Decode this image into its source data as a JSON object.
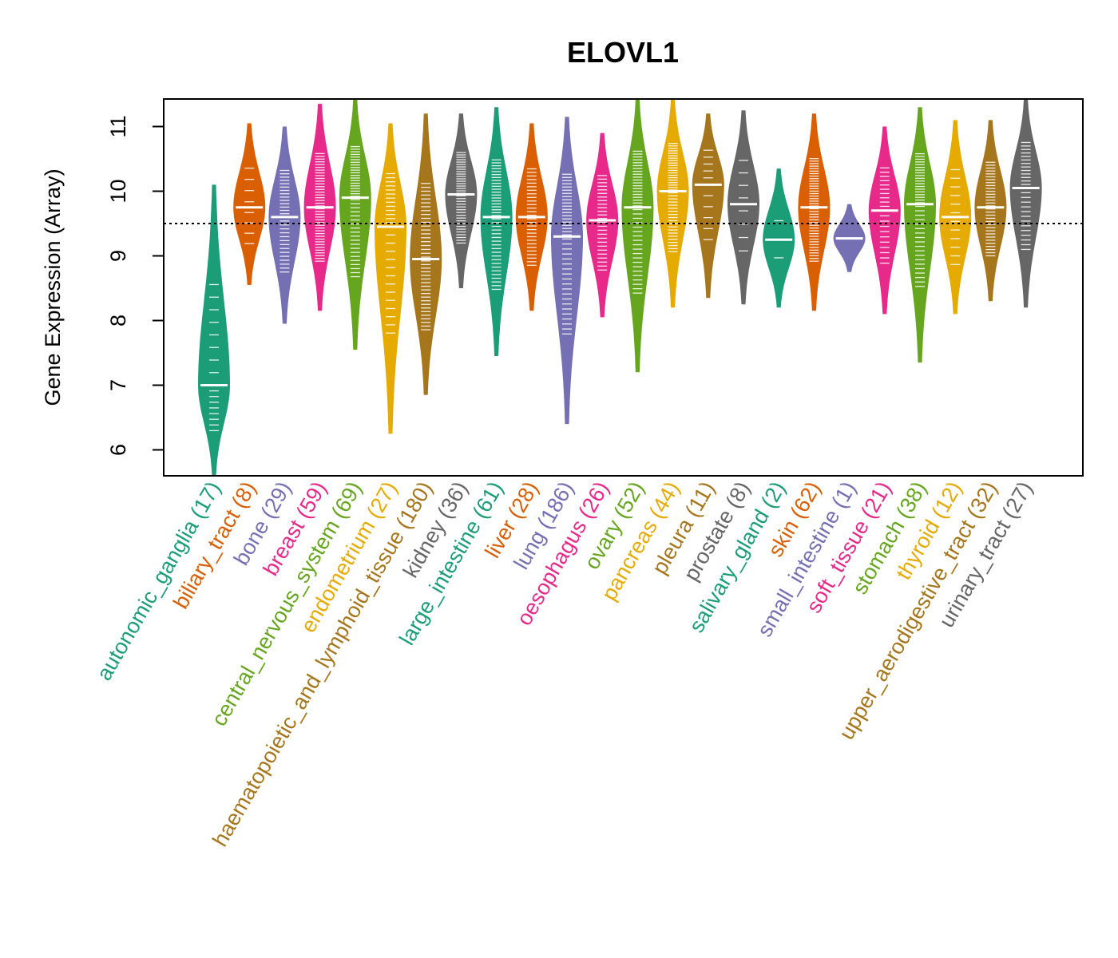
{
  "chart_data": {
    "type": "violin",
    "title": "ELOVL1",
    "xlabel": "",
    "ylabel": "Gene Expression (Array)",
    "ylim": [
      5.6,
      11.42
    ],
    "yticks": [
      6,
      7,
      8,
      9,
      10,
      11
    ],
    "reference_line": 9.5,
    "categories": [
      {
        "name": "autonomic_ganglia",
        "n": 17,
        "label": "autonomic_ganglia (17)",
        "color": "#1B9E77",
        "min": 5.6,
        "max": 10.1,
        "median": 7.0
      },
      {
        "name": "biliary_tract",
        "n": 8,
        "label": "biliary_tract (8)",
        "color": "#D95F02",
        "min": 8.55,
        "max": 11.05,
        "median": 9.75
      },
      {
        "name": "bone",
        "n": 29,
        "label": "bone (29)",
        "color": "#7570B3",
        "min": 7.95,
        "max": 11.0,
        "median": 9.6
      },
      {
        "name": "breast",
        "n": 59,
        "label": "breast (59)",
        "color": "#E7298A",
        "min": 8.15,
        "max": 11.35,
        "median": 9.75
      },
      {
        "name": "central_nervous_system",
        "n": 69,
        "label": "central_nervous_system (69)",
        "color": "#66A61E",
        "min": 7.55,
        "max": 11.42,
        "median": 9.9
      },
      {
        "name": "endometrium",
        "n": 27,
        "label": "endometrium (27)",
        "color": "#E6AB02",
        "min": 6.25,
        "max": 11.05,
        "median": 9.45
      },
      {
        "name": "haematopoietic_and_lymphoid_tissue",
        "n": 180,
        "label": "haematopoietic_and_lymphoid_tissue (180)",
        "color": "#A6761D",
        "min": 6.85,
        "max": 11.2,
        "median": 8.95
      },
      {
        "name": "kidney",
        "n": 36,
        "label": "kidney (36)",
        "color": "#666666",
        "min": 8.5,
        "max": 11.2,
        "median": 9.95
      },
      {
        "name": "large_intestine",
        "n": 61,
        "label": "large_intestine (61)",
        "color": "#1B9E77",
        "min": 7.45,
        "max": 11.3,
        "median": 9.6
      },
      {
        "name": "liver",
        "n": 28,
        "label": "liver (28)",
        "color": "#D95F02",
        "min": 8.15,
        "max": 11.05,
        "median": 9.6
      },
      {
        "name": "lung",
        "n": 186,
        "label": "lung (186)",
        "color": "#7570B3",
        "min": 6.4,
        "max": 11.15,
        "median": 9.3
      },
      {
        "name": "oesophagus",
        "n": 26,
        "label": "oesophagus (26)",
        "color": "#E7298A",
        "min": 8.05,
        "max": 10.9,
        "median": 9.55
      },
      {
        "name": "ovary",
        "n": 52,
        "label": "ovary (52)",
        "color": "#66A61E",
        "min": 7.2,
        "max": 11.42,
        "median": 9.75
      },
      {
        "name": "pancreas",
        "n": 44,
        "label": "pancreas (44)",
        "color": "#E6AB02",
        "min": 8.2,
        "max": 11.42,
        "median": 10.0
      },
      {
        "name": "pleura",
        "n": 11,
        "label": "pleura (11)",
        "color": "#A6761D",
        "min": 8.35,
        "max": 11.2,
        "median": 10.1
      },
      {
        "name": "prostate",
        "n": 8,
        "label": "prostate (8)",
        "color": "#666666",
        "min": 8.25,
        "max": 11.25,
        "median": 9.8
      },
      {
        "name": "salivary_gland",
        "n": 2,
        "label": "salivary_gland (2)",
        "color": "#1B9E77",
        "min": 8.2,
        "max": 10.35,
        "median": 9.25
      },
      {
        "name": "skin",
        "n": 62,
        "label": "skin (62)",
        "color": "#D95F02",
        "min": 8.15,
        "max": 11.2,
        "median": 9.75
      },
      {
        "name": "small_intestine",
        "n": 1,
        "label": "small_intestine (1)",
        "color": "#7570B3",
        "min": 8.75,
        "max": 9.8,
        "median": 9.27
      },
      {
        "name": "soft_tissue",
        "n": 21,
        "label": "soft_tissue (21)",
        "color": "#E7298A",
        "min": 8.1,
        "max": 11.0,
        "median": 9.7
      },
      {
        "name": "stomach",
        "n": 38,
        "label": "stomach (38)",
        "color": "#66A61E",
        "min": 7.35,
        "max": 11.3,
        "median": 9.8
      },
      {
        "name": "thyroid",
        "n": 12,
        "label": "thyroid (12)",
        "color": "#E6AB02",
        "min": 8.1,
        "max": 11.1,
        "median": 9.6
      },
      {
        "name": "upper_aerodigestive_tract",
        "n": 32,
        "label": "upper_aerodigestive_tract (32)",
        "color": "#A6761D",
        "min": 8.3,
        "max": 11.1,
        "median": 9.75
      },
      {
        "name": "urinary_tract",
        "n": 27,
        "label": "urinary_tract (27)",
        "color": "#666666",
        "min": 8.2,
        "max": 11.42,
        "median": 10.05
      }
    ]
  }
}
